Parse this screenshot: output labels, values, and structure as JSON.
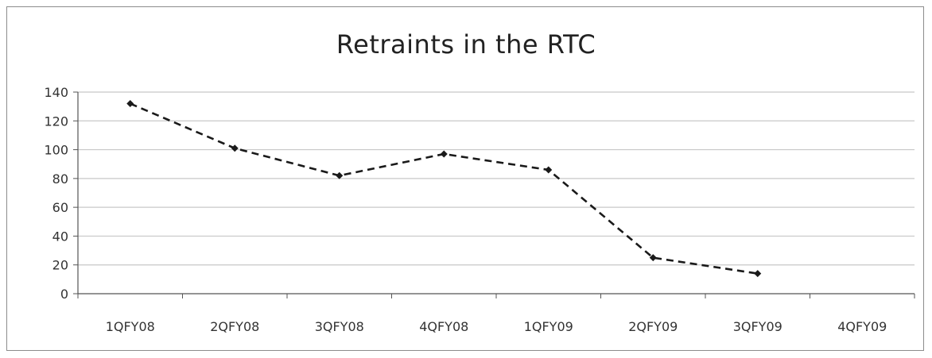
{
  "chart_data": {
    "type": "line",
    "title": "Retraints in the RTC",
    "xlabel": "",
    "ylabel": "",
    "categories": [
      "1QFY08",
      "2QFY08",
      "3QFY08",
      "4QFY08",
      "1QFY09",
      "2QFY09",
      "3QFY09",
      "4QFY09"
    ],
    "series": [
      {
        "values": [
          132,
          101,
          82,
          97,
          86,
          25,
          14,
          null
        ]
      }
    ],
    "ylim": [
      0,
      140
    ],
    "yticks": [
      0,
      20,
      40,
      60,
      80,
      100,
      120,
      140
    ],
    "grid": true,
    "legend": "none",
    "line_style": "dashed",
    "marker": "diamond",
    "line_color": "#1a1a1a",
    "grid_color": "#c8c8c8"
  }
}
